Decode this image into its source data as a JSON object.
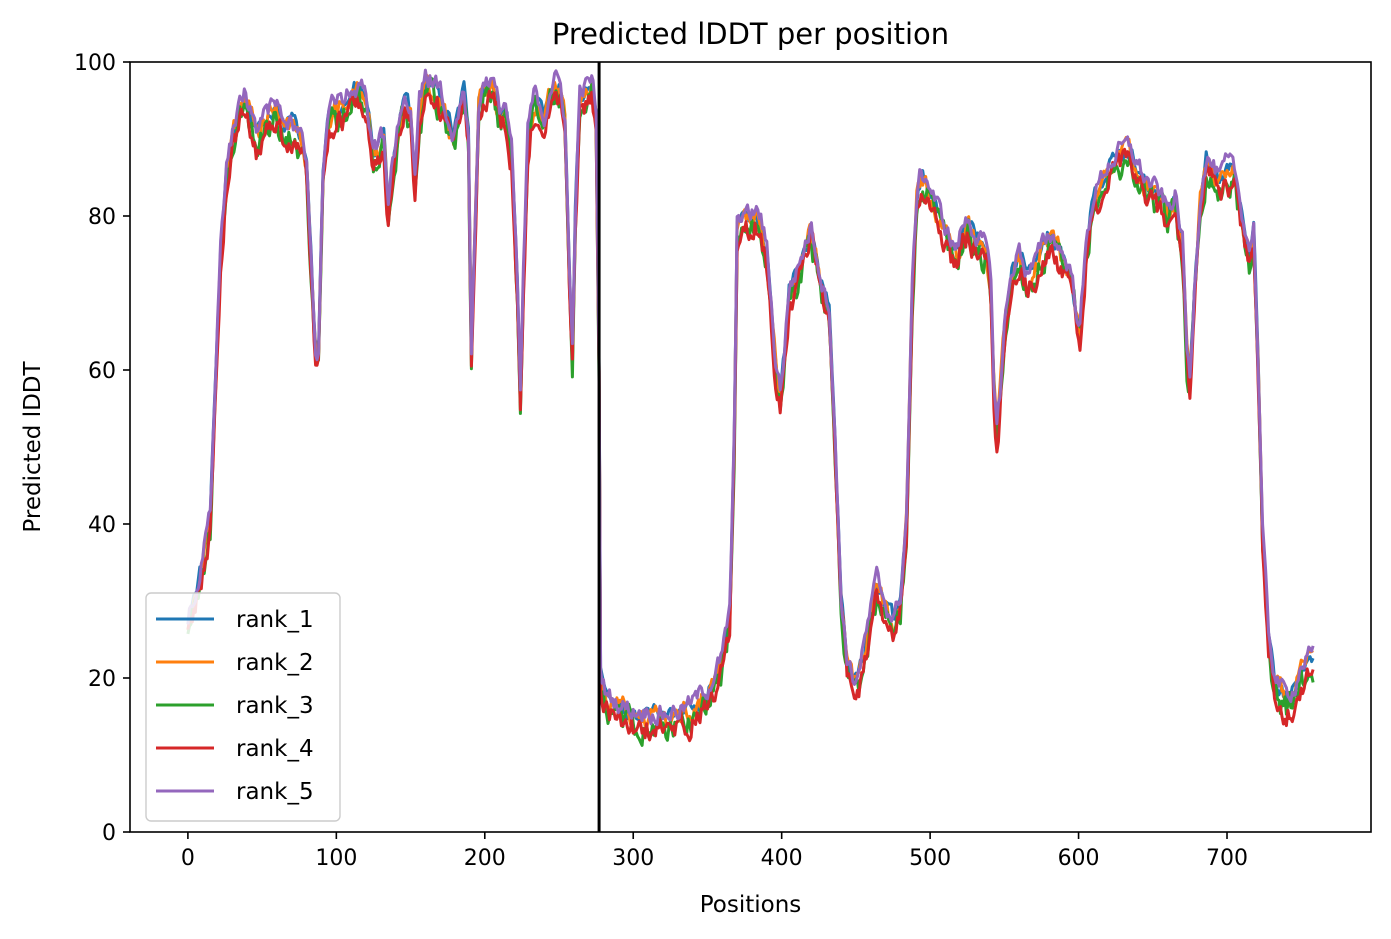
{
  "chart_data": {
    "type": "line",
    "title": "Predicted lDDT per position",
    "xlabel": "Positions",
    "ylabel": "Predicted lDDT",
    "xlim": [
      -39,
      797
    ],
    "ylim": [
      0,
      100
    ],
    "xticks": [
      0,
      100,
      200,
      300,
      400,
      500,
      600,
      700
    ],
    "xtick_labels": [
      "0",
      "100",
      "200",
      "300",
      "400",
      "500",
      "600",
      "700"
    ],
    "yticks": [
      0,
      20,
      40,
      60,
      80,
      100
    ],
    "ytick_labels": [
      "0",
      "20",
      "40",
      "60",
      "80",
      "100"
    ],
    "grid": false,
    "legend_position": "lower-left",
    "vertical_line_x": 277,
    "base_profile": [
      [
        0,
        27
      ],
      [
        5,
        31
      ],
      [
        10,
        35
      ],
      [
        15,
        40
      ],
      [
        18,
        55
      ],
      [
        22,
        75
      ],
      [
        26,
        85
      ],
      [
        30,
        90
      ],
      [
        34,
        93
      ],
      [
        38,
        95
      ],
      [
        42,
        93
      ],
      [
        46,
        90
      ],
      [
        50,
        92
      ],
      [
        55,
        93
      ],
      [
        60,
        94
      ],
      [
        65,
        91
      ],
      [
        70,
        92
      ],
      [
        75,
        90
      ],
      [
        80,
        87
      ],
      [
        84,
        70
      ],
      [
        86,
        62
      ],
      [
        88,
        62
      ],
      [
        91,
        85
      ],
      [
        95,
        93
      ],
      [
        100,
        94
      ],
      [
        105,
        94
      ],
      [
        108,
        95
      ],
      [
        112,
        96
      ],
      [
        115,
        96
      ],
      [
        120,
        95
      ],
      [
        125,
        88
      ],
      [
        128,
        88
      ],
      [
        132,
        90
      ],
      [
        135,
        80
      ],
      [
        138,
        86
      ],
      [
        142,
        92
      ],
      [
        146,
        95
      ],
      [
        150,
        93
      ],
      [
        153,
        84
      ],
      [
        156,
        94
      ],
      [
        160,
        97
      ],
      [
        165,
        97
      ],
      [
        170,
        95
      ],
      [
        175,
        93
      ],
      [
        179,
        90
      ],
      [
        182,
        93
      ],
      [
        186,
        96
      ],
      [
        189,
        90
      ],
      [
        191,
        62
      ],
      [
        193,
        75
      ],
      [
        196,
        94
      ],
      [
        200,
        97
      ],
      [
        205,
        97
      ],
      [
        210,
        93
      ],
      [
        214,
        94
      ],
      [
        218,
        88
      ],
      [
        222,
        70
      ],
      [
        224,
        56
      ],
      [
        226,
        72
      ],
      [
        229,
        90
      ],
      [
        233,
        95
      ],
      [
        237,
        94
      ],
      [
        240,
        92
      ],
      [
        244,
        96
      ],
      [
        247,
        97
      ],
      [
        251,
        96
      ],
      [
        254,
        92
      ],
      [
        257,
        72
      ],
      [
        259,
        62
      ],
      [
        261,
        80
      ],
      [
        264,
        95
      ],
      [
        268,
        96
      ],
      [
        272,
        97
      ],
      [
        275,
        93
      ],
      [
        277,
        60
      ],
      [
        278,
        20
      ],
      [
        282,
        17
      ],
      [
        290,
        16
      ],
      [
        300,
        15
      ],
      [
        310,
        15
      ],
      [
        320,
        14.5
      ],
      [
        330,
        15
      ],
      [
        340,
        16
      ],
      [
        350,
        18
      ],
      [
        360,
        22
      ],
      [
        365,
        28
      ],
      [
        368,
        50
      ],
      [
        370,
        78
      ],
      [
        374,
        80
      ],
      [
        378,
        79
      ],
      [
        382,
        80
      ],
      [
        386,
        79
      ],
      [
        390,
        75
      ],
      [
        393,
        68
      ],
      [
        396,
        60
      ],
      [
        399,
        57
      ],
      [
        402,
        62
      ],
      [
        405,
        70
      ],
      [
        410,
        72
      ],
      [
        415,
        75
      ],
      [
        420,
        78
      ],
      [
        424,
        74
      ],
      [
        428,
        70
      ],
      [
        432,
        68
      ],
      [
        436,
        50
      ],
      [
        440,
        30
      ],
      [
        444,
        22
      ],
      [
        448,
        19
      ],
      [
        452,
        20
      ],
      [
        456,
        24
      ],
      [
        460,
        28
      ],
      [
        464,
        32
      ],
      [
        468,
        30
      ],
      [
        472,
        28
      ],
      [
        476,
        27
      ],
      [
        480,
        30
      ],
      [
        484,
        40
      ],
      [
        488,
        70
      ],
      [
        491,
        82
      ],
      [
        494,
        85
      ],
      [
        498,
        84
      ],
      [
        502,
        82
      ],
      [
        506,
        80
      ],
      [
        510,
        78
      ],
      [
        514,
        76
      ],
      [
        518,
        75
      ],
      [
        522,
        78
      ],
      [
        526,
        79
      ],
      [
        530,
        77
      ],
      [
        534,
        76
      ],
      [
        538,
        75
      ],
      [
        541,
        70
      ],
      [
        543,
        58
      ],
      [
        545,
        52
      ],
      [
        547,
        56
      ],
      [
        550,
        65
      ],
      [
        555,
        72
      ],
      [
        560,
        75
      ],
      [
        565,
        72
      ],
      [
        570,
        73
      ],
      [
        575,
        75
      ],
      [
        580,
        77
      ],
      [
        585,
        76
      ],
      [
        590,
        74
      ],
      [
        595,
        72
      ],
      [
        598,
        68
      ],
      [
        601,
        65
      ],
      [
        605,
        75
      ],
      [
        610,
        82
      ],
      [
        615,
        84
      ],
      [
        620,
        86
      ],
      [
        625,
        87
      ],
      [
        630,
        88
      ],
      [
        635,
        88
      ],
      [
        640,
        86
      ],
      [
        645,
        84
      ],
      [
        650,
        83
      ],
      [
        655,
        82
      ],
      [
        660,
        80
      ],
      [
        665,
        82
      ],
      [
        670,
        76
      ],
      [
        673,
        62
      ],
      [
        675,
        58
      ],
      [
        678,
        70
      ],
      [
        682,
        82
      ],
      [
        686,
        87
      ],
      [
        690,
        86
      ],
      [
        695,
        84
      ],
      [
        700,
        86
      ],
      [
        705,
        85
      ],
      [
        710,
        80
      ],
      [
        715,
        75
      ],
      [
        718,
        78
      ],
      [
        721,
        60
      ],
      [
        724,
        38
      ],
      [
        728,
        25
      ],
      [
        732,
        20
      ],
      [
        736,
        18
      ],
      [
        740,
        17
      ],
      [
        745,
        18
      ],
      [
        750,
        21
      ],
      [
        755,
        22
      ],
      [
        758,
        22
      ]
    ],
    "series": [
      {
        "name": "rank_1",
        "color": "#1f77b4",
        "offset": 0.4,
        "noise": 0.6
      },
      {
        "name": "rank_2",
        "color": "#ff7f0e",
        "offset": 0.0,
        "noise": 0.8
      },
      {
        "name": "rank_3",
        "color": "#2ca02c",
        "offset": -1.2,
        "noise": 1.0
      },
      {
        "name": "rank_4",
        "color": "#d62728",
        "offset": -1.5,
        "noise": 0.9
      },
      {
        "name": "rank_5",
        "color": "#9467bd",
        "offset": 0.8,
        "noise": 0.7
      }
    ]
  }
}
